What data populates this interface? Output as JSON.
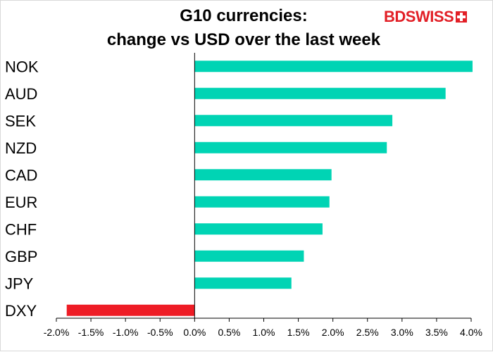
{
  "title_line1": "G10 currencies:",
  "title_line2": "change vs USD over the last week",
  "logo": {
    "left": "BD",
    "right": "SWISS",
    "icon": "swiss-cross-icon",
    "color": "#e21f26"
  },
  "colors": {
    "positive": "#00d4b4",
    "negative": "#ee1c25",
    "axis": "#000000",
    "text": "#000000"
  },
  "chart_data": {
    "type": "bar",
    "orientation": "horizontal",
    "categories": [
      "NOK",
      "AUD",
      "SEK",
      "NZD",
      "CAD",
      "EUR",
      "CHF",
      "GBP",
      "JPY",
      "DXY"
    ],
    "values": [
      4.02,
      3.63,
      2.86,
      2.78,
      1.98,
      1.95,
      1.85,
      1.58,
      1.4,
      -1.85
    ],
    "value_format": "percent",
    "xlim": [
      -2.0,
      4.0
    ],
    "xticks": [
      -2.0,
      -1.5,
      -1.0,
      -0.5,
      0.0,
      0.5,
      1.0,
      1.5,
      2.0,
      2.5,
      3.0,
      3.5,
      4.0
    ],
    "xtick_labels": [
      "-2.0%",
      "-1.5%",
      "-1.0%",
      "-0.5%",
      "0.0%",
      "0.5%",
      "1.0%",
      "1.5%",
      "2.0%",
      "2.5%",
      "3.0%",
      "3.5%",
      "4.0%"
    ],
    "grid": false,
    "legend": "none",
    "title": "G10 currencies: change vs USD over the last week",
    "xlabel": "",
    "ylabel": ""
  }
}
